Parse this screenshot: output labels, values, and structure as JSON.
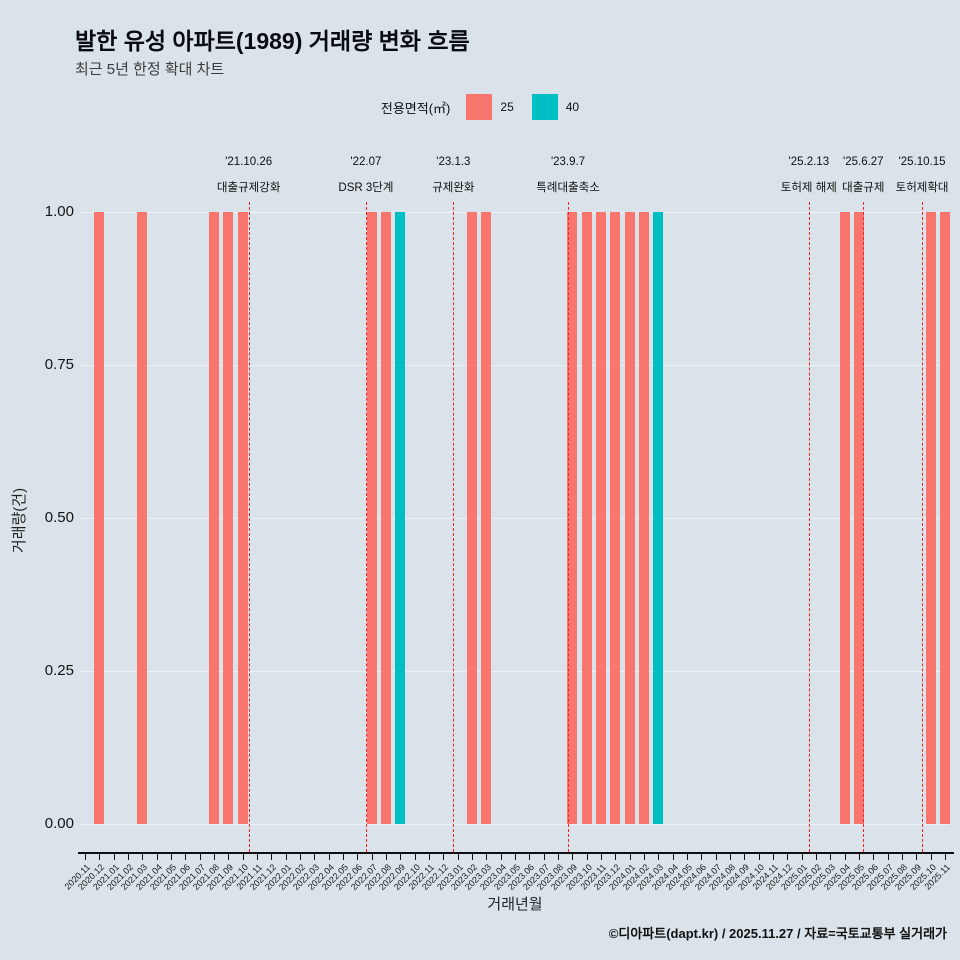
{
  "header": {
    "title": "발한 유성 아파트(1989) 거래량 변화 흐름",
    "subtitle": "최근 5년 한정 확대 차트"
  },
  "legend": {
    "label": "전용면적(㎡)",
    "items": [
      {
        "name": "25",
        "color": "#F8766D"
      },
      {
        "name": "40",
        "color": "#00BFC4"
      }
    ]
  },
  "footer": {
    "credit": "©디아파트(dapt.kr) / 2025.11.27 / 자료=국토교통부 실거래가"
  },
  "chart_data": {
    "type": "bar",
    "title": "발한 유성 아파트(1989) 거래량 변화 흐름",
    "subtitle": "최근 5년 한정 확대 차트",
    "xlabel": "거래년월",
    "ylabel": "거래량(건)",
    "ylim": [
      0,
      1
    ],
    "grid": true,
    "legend_position": "top",
    "yticks": [
      {
        "label": "0.00",
        "value": 0
      },
      {
        "label": "0.25",
        "value": 0.25
      },
      {
        "label": "0.50",
        "value": 0.5
      },
      {
        "label": "0.75",
        "value": 0.75
      },
      {
        "label": "1.00",
        "value": 1
      }
    ],
    "categories": [
      "2020.11",
      "2020.12",
      "2021.01",
      "2021.02",
      "2021.03",
      "2021.04",
      "2021.05",
      "2021.06",
      "2021.07",
      "2021.08",
      "2021.09",
      "2021.10",
      "2021.11",
      "2021.12",
      "2022.01",
      "2022.02",
      "2022.03",
      "2022.04",
      "2022.05",
      "2022.06",
      "2022.07",
      "2022.08",
      "2022.09",
      "2022.10",
      "2022.11",
      "2022.12",
      "2023.01",
      "2023.02",
      "2023.03",
      "2023.04",
      "2023.05",
      "2023.06",
      "2023.07",
      "2023.08",
      "2023.09",
      "2023.10",
      "2023.11",
      "2023.12",
      "2024.01",
      "2024.02",
      "2024.03",
      "2024.04",
      "2024.05",
      "2024.06",
      "2024.07",
      "2024.08",
      "2024.09",
      "2024.10",
      "2024.11",
      "2024.12",
      "2025.01",
      "2025.02",
      "2025.03",
      "2025.04",
      "2025.05",
      "2025.06",
      "2025.07",
      "2025.08",
      "2025.09",
      "2025.10",
      "2025.11"
    ],
    "series": [
      {
        "name": "25",
        "color": "#F8766D",
        "count_per_month": 1,
        "months": [
          "2020.12",
          "2021.03",
          "2021.08",
          "2021.09",
          "2021.10",
          "2022.07",
          "2022.08",
          "2023.02",
          "2023.03",
          "2023.09",
          "2023.10",
          "2023.11",
          "2023.12",
          "2024.01",
          "2024.02",
          "2025.04",
          "2025.05",
          "2025.10",
          "2025.11"
        ]
      },
      {
        "name": "40",
        "color": "#00BFC4",
        "count_per_month": 1,
        "months": [
          "2022.09",
          "2024.03"
        ]
      }
    ],
    "annotations": [
      {
        "date": "'21.10.26",
        "label": "대출규제강화",
        "pos": 11.42
      },
      {
        "date": "'22.07",
        "label": "DSR 3단계",
        "pos": 19.6
      },
      {
        "date": "'23.1.3",
        "label": "규제완화",
        "pos": 25.7
      },
      {
        "date": "'23.9.7",
        "label": "특례대출축소",
        "pos": 33.7
      },
      {
        "date": "'25.2.13",
        "label": "토허제 해제",
        "pos": 50.5
      },
      {
        "date": "'25.6.27",
        "label": "대출규제",
        "pos": 54.3
      },
      {
        "date": "'25.10.15",
        "label": "토허제확대",
        "pos": 58.4
      }
    ]
  }
}
